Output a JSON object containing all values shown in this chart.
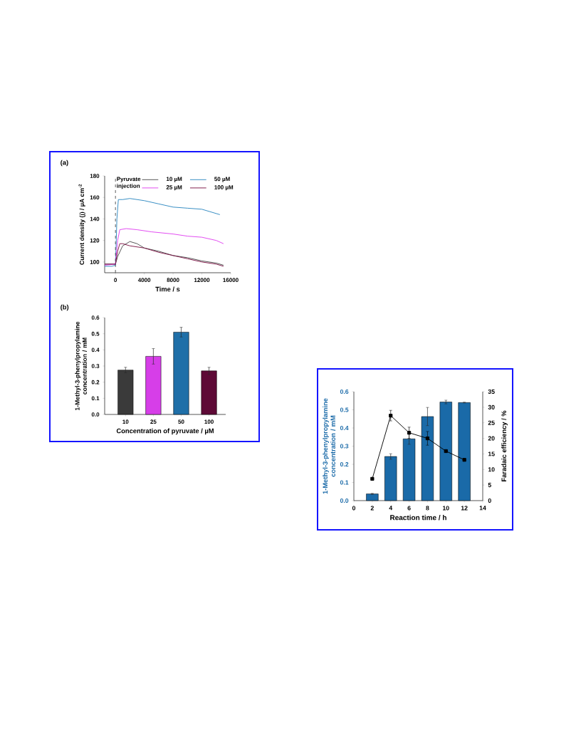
{
  "chart_data": [
    {
      "type": "line",
      "title": "(a)",
      "xlabel": "Time / s",
      "ylabel": "Current density (j) / µA cm$^{-2}$",
      "xlim": [
        -1500,
        16000
      ],
      "ylim": [
        90,
        180
      ],
      "xticks": [
        0,
        4000,
        8000,
        12000,
        16000
      ],
      "yticks": [
        100,
        120,
        140,
        160,
        180
      ],
      "legend": "top right",
      "ref_lines": [
        {
          "axis": "x",
          "value": 0,
          "label": "Pyruvate injection",
          "line_style": "dashed",
          "color": "#333333"
        }
      ],
      "series": [
        {
          "name": "10 µM",
          "color": "#4a4a4a",
          "x": [
            -1500,
            0,
            300,
            1000,
            2000,
            3000,
            4000,
            6000,
            8000,
            10000,
            12000,
            14000,
            15000
          ],
          "values": [
            98,
            98,
            105,
            115,
            119,
            117,
            113,
            110,
            106,
            104,
            101,
            99,
            97
          ]
        },
        {
          "name": "50 µM",
          "color": "#2b86c0",
          "x": [
            -1500,
            -500,
            0,
            200,
            400,
            1000,
            2000,
            4000,
            6000,
            8000,
            10000,
            12000,
            14500
          ],
          "values": [
            96,
            96,
            97,
            140,
            158,
            158,
            159,
            157,
            154,
            151,
            150,
            149,
            144
          ]
        },
        {
          "name": "25 µM",
          "color": "#e040f0",
          "x": [
            -1500,
            0,
            300,
            600,
            1500,
            3000,
            5000,
            8000,
            10000,
            12000,
            14000,
            15000
          ],
          "values": [
            97,
            98,
            120,
            130,
            131,
            130,
            128,
            126,
            124,
            123,
            120,
            117
          ]
        },
        {
          "name": "100 µM",
          "color": "#7a1042",
          "x": [
            -1500,
            0,
            300,
            600,
            1000,
            2000,
            3000,
            4000,
            6000,
            8000,
            10000,
            12000,
            14000,
            15000
          ],
          "values": [
            98,
            98,
            110,
            117,
            117,
            115,
            114,
            113,
            109,
            106,
            103,
            100,
            98,
            96
          ]
        }
      ]
    },
    {
      "type": "bar",
      "title": "(b)",
      "xlabel": "Concentration of pyruvate / µM",
      "ylabel": "1-Methyl-3-phenylpropylamine concentration / mM",
      "categories": [
        "10",
        "25",
        "50",
        "100"
      ],
      "values": [
        0.275,
        0.36,
        0.51,
        0.27
      ],
      "errors": [
        0.017,
        0.048,
        0.03,
        0.022
      ],
      "colors": [
        "#3a3a3a",
        "#d63ee8",
        "#1f6fa8",
        "#5e0a36"
      ],
      "ylim": [
        0,
        0.6
      ],
      "yticks": [
        {
          "value": 0,
          "label": "0.0"
        },
        0.1,
        0.2,
        0.3,
        0.4,
        0.5,
        0.6
      ]
    },
    {
      "type": "bar",
      "xlabel": "Reaction time / h",
      "ylabel": "1-Methyl-3-phenylpropylamine concentration / mM",
      "y2label": "Faradaic efficiency / %",
      "xlim": [
        0,
        14
      ],
      "xticks": [
        0,
        2,
        4,
        6,
        8,
        10,
        12,
        14
      ],
      "ylim": [
        0,
        0.6
      ],
      "yticks": [
        {
          "value": 0,
          "label": "0.0"
        },
        0.1,
        0.2,
        0.3,
        0.4,
        0.5,
        0.6
      ],
      "y2lim": [
        0,
        35
      ],
      "y2ticks": [
        0,
        5,
        10,
        15,
        20,
        25,
        30,
        35
      ],
      "series": [
        {
          "type": "bar",
          "color": "#1a6aa8",
          "x": [
            2,
            4,
            6,
            8,
            10,
            12
          ],
          "values": [
            0.037,
            0.243,
            0.34,
            0.463,
            0.543,
            0.54
          ],
          "errors": [
            0.003,
            0.015,
            0.03,
            0.05,
            0.01,
            0.002
          ]
        },
        {
          "type": "line",
          "axis": "y2",
          "color": "#000000",
          "marker": "square",
          "x": [
            2,
            4,
            6,
            8,
            10,
            12
          ],
          "values": [
            7,
            27.3,
            21.8,
            20,
            15.9,
            13.1
          ],
          "errors": [
            null,
            1.7,
            1.8,
            2.2,
            null,
            null
          ]
        }
      ]
    }
  ]
}
